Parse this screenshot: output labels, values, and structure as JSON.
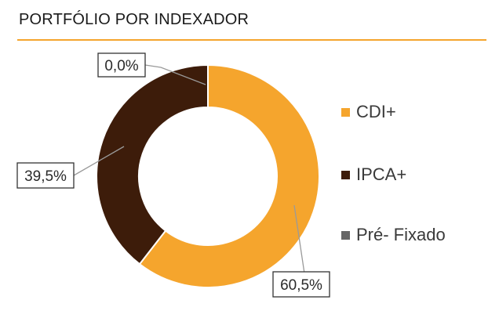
{
  "header": {
    "title": "PORTFÓLIO POR INDEXADOR"
  },
  "colors": {
    "accent": "#f5a52d",
    "cdi": "#f5a52d",
    "ipca": "#3d1c0a",
    "pre": "#666666"
  },
  "chart_data": {
    "type": "pie",
    "donut": true,
    "categories": [
      "CDI+",
      "IPCA+",
      "Pré- Fixado"
    ],
    "values": [
      60.5,
      39.5,
      0.0
    ],
    "data_labels": [
      "60,5%",
      "39,5%",
      "0,0%"
    ],
    "legend_placement": "right"
  }
}
